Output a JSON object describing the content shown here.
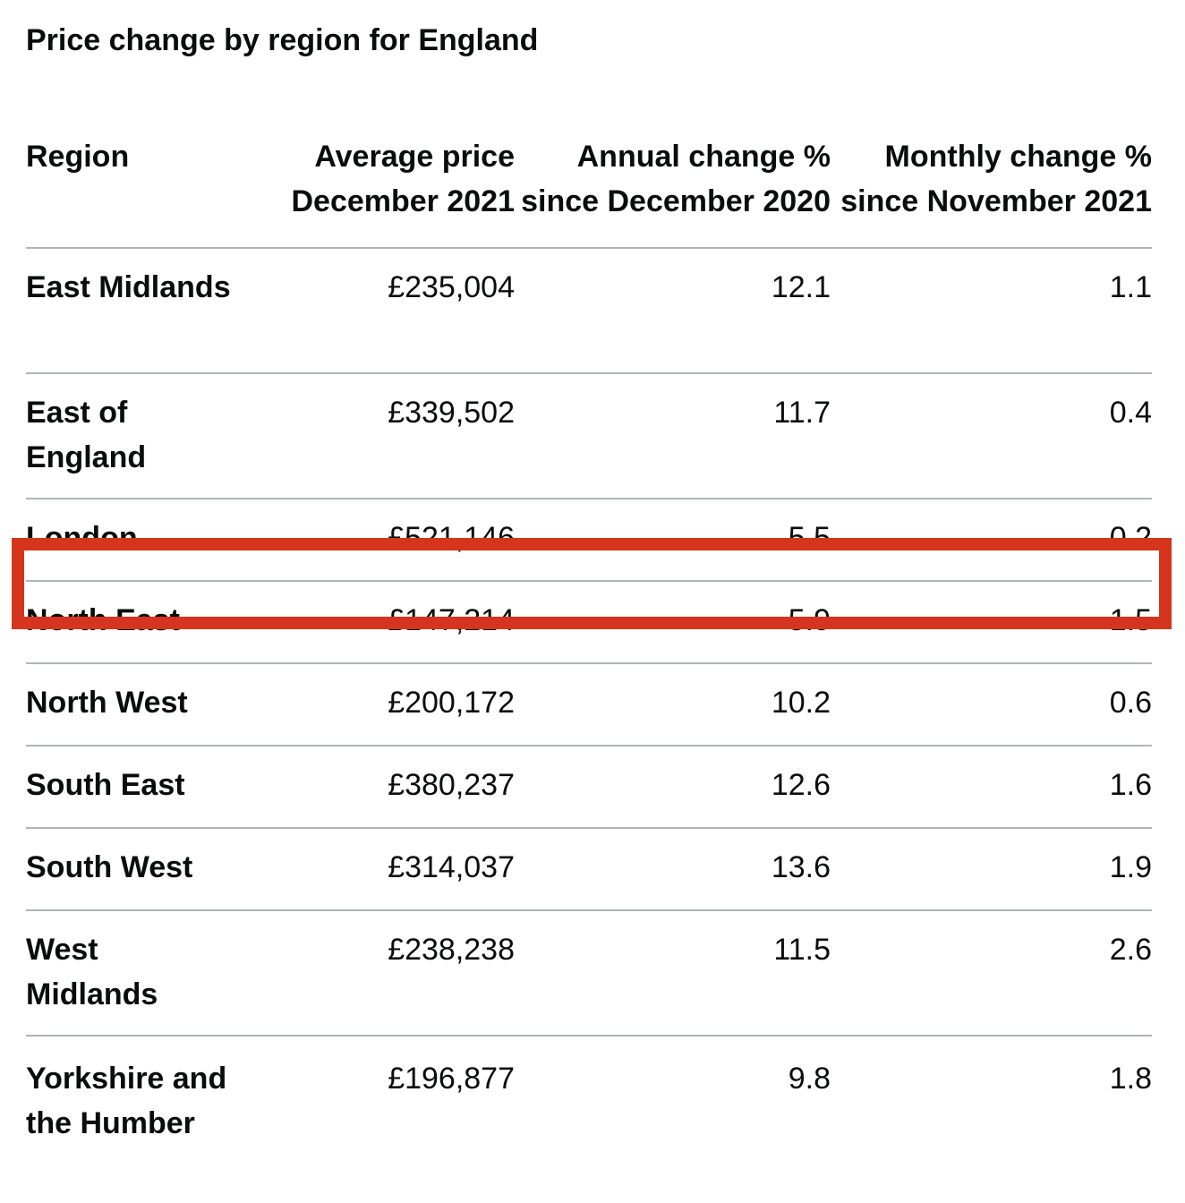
{
  "caption": "Price change by region for England",
  "headers": {
    "region": "Region",
    "price": "Average price December 2021",
    "annual": "Annual change % since December 2020",
    "monthly": "Monthly change % since November 2021"
  },
  "rows": [
    {
      "region": "East Midlands",
      "price": "£235,004",
      "annual": "12.1",
      "monthly": "1.1"
    },
    {
      "region": "East of England",
      "price": "£339,502",
      "annual": "11.7",
      "monthly": "0.4"
    },
    {
      "region": "London",
      "price": "£521,146",
      "annual": "5.5",
      "monthly": "0.2"
    },
    {
      "region": "North East",
      "price": "£147,214",
      "annual": "5.9",
      "monthly": "-1.5"
    },
    {
      "region": "North West",
      "price": "£200,172",
      "annual": "10.2",
      "monthly": "0.6"
    },
    {
      "region": "South East",
      "price": "£380,237",
      "annual": "12.6",
      "monthly": "1.6"
    },
    {
      "region": "South West",
      "price": "£314,037",
      "annual": "13.6",
      "monthly": "1.9"
    },
    {
      "region": "West Midlands",
      "price": "£238,238",
      "annual": "11.5",
      "monthly": "2.6"
    },
    {
      "region": "Yorkshire and the Humber",
      "price": "£196,877",
      "annual": "9.8",
      "monthly": "1.8"
    }
  ],
  "highlight_color": "#d4351c"
}
